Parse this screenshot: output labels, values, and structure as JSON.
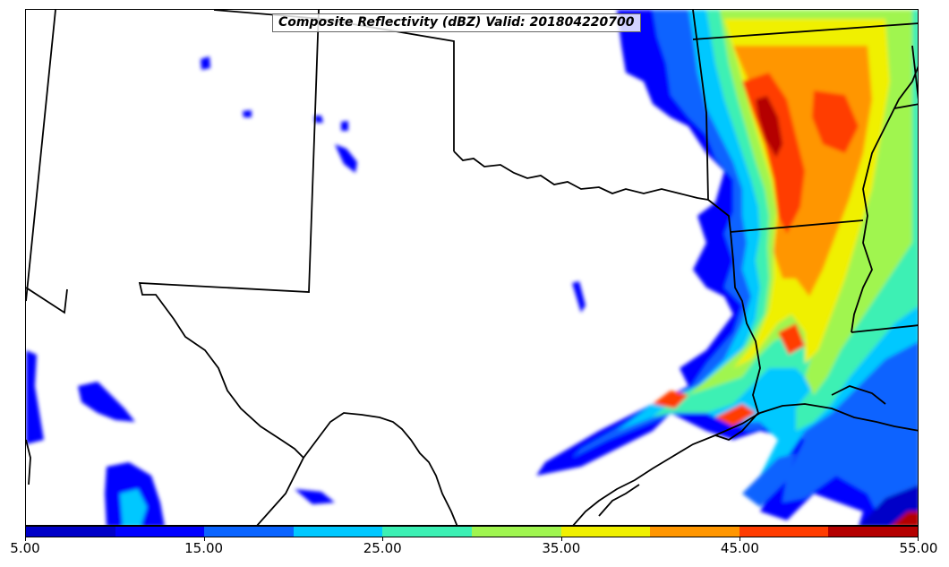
{
  "title": "Composite Reflectivity (dBZ) Valid: 201804220700",
  "map": {
    "region": "Southern Plains and Lower Mississippi Valley",
    "background": "#ffffff",
    "boundary_color": "#000000"
  },
  "colorbar": {
    "colors": [
      "#0000c8",
      "#0000ff",
      "#0a64ff",
      "#00c8ff",
      "#3cf0b4",
      "#a0f550",
      "#f0f000",
      "#ff9600",
      "#ff3c00",
      "#b40000"
    ],
    "labels": [
      "5.00",
      "15.00",
      "25.00",
      "35.00",
      "45.00",
      "55.00"
    ],
    "min": 5,
    "max": 55
  }
}
